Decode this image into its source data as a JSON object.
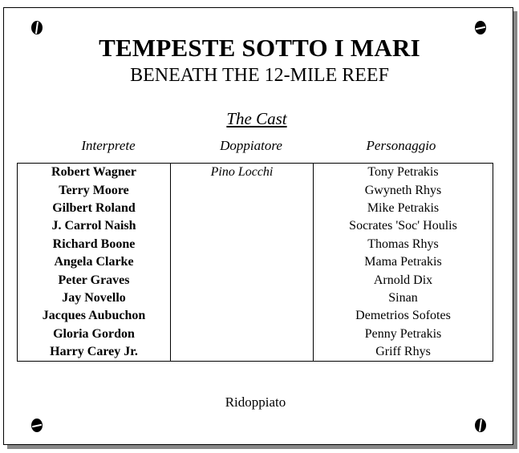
{
  "title": "TEMPESTE SOTTO I MARI",
  "subtitle": "BENEATH THE 12-MILE REEF",
  "section_title": "The Cast",
  "columns": [
    "Interprete",
    "Doppiatore",
    "Personaggio"
  ],
  "rows": [
    [
      "Robert Wagner",
      "Pino Locchi",
      "Tony Petrakis"
    ],
    [
      "Terry Moore",
      "",
      "Gwyneth Rhys"
    ],
    [
      "Gilbert Roland",
      "",
      "Mike Petrakis"
    ],
    [
      "J. Carrol Naish",
      "",
      "Socrates 'Soc' Houlis"
    ],
    [
      "Richard Boone",
      "",
      "Thomas Rhys"
    ],
    [
      "Angela Clarke",
      "",
      "Mama Petrakis"
    ],
    [
      "Peter Graves",
      "",
      "Arnold Dix"
    ],
    [
      "Jay Novello",
      "",
      "Sinan"
    ],
    [
      "Jacques Aubuchon",
      "",
      "Demetrios Sofotes"
    ],
    [
      "Gloria Gordon",
      "",
      "Penny Petrakis"
    ],
    [
      "Harry Carey Jr.",
      "",
      "Griff Rhys"
    ]
  ],
  "footer": "Ridoppiato",
  "icons": [
    "screw-icon"
  ]
}
